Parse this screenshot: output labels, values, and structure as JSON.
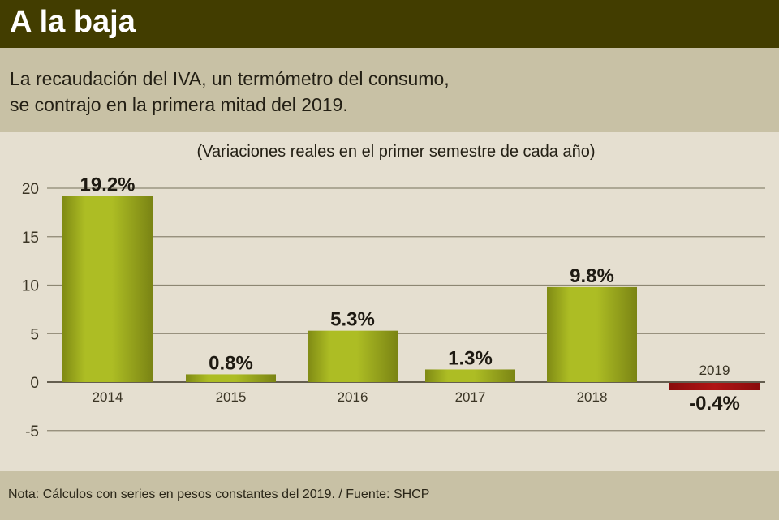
{
  "header": {
    "title": "A la baja"
  },
  "subtitle": {
    "lines": [
      "La recaudación del IVA, un termómetro del consumo,",
      "se contrajo en la primera mitad del 2019."
    ]
  },
  "footer": {
    "note": "Nota: Cálculos con series en pesos constantes del 2019. / Fuente: SHCP"
  },
  "colors": {
    "header_bg": "#423d00",
    "positive_bar": "#a9b823",
    "negative_bar": "#a01010",
    "band_bg": "#c8c1a5",
    "chart_bg": "#e5dfd0"
  },
  "chart_data": {
    "type": "bar",
    "title": "(Variaciones reales en el primer semestre de cada año)",
    "xlabel": "",
    "ylabel": "",
    "categories": [
      "2014",
      "2015",
      "2016",
      "2017",
      "2018",
      "2019"
    ],
    "values": [
      19.2,
      0.8,
      5.3,
      1.3,
      9.8,
      -0.4
    ],
    "data_labels": [
      "19.2%",
      "0.8%",
      "5.3%",
      "1.3%",
      "9.8%",
      "-0.4%"
    ],
    "ylim": [
      -5,
      20
    ],
    "yticks": [
      20,
      15,
      10,
      5,
      0,
      -5
    ],
    "ytick_labels": [
      "20",
      "15",
      "10",
      "5",
      "0",
      "-5"
    ],
    "grid": true,
    "legend": "none"
  }
}
